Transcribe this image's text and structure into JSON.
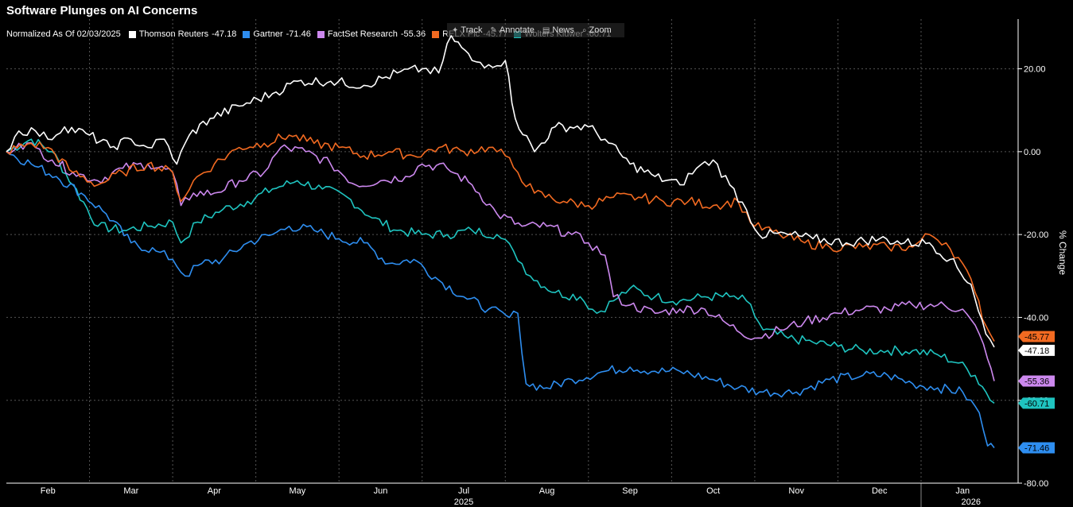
{
  "title": "Software Plunges on AI Concerns",
  "legend_prefix": "Normalized As Of 02/03/2025",
  "toolbar": {
    "items": [
      {
        "label": "Track",
        "icon": "track-icon"
      },
      {
        "label": "Annotate",
        "icon": "annotate-icon"
      },
      {
        "label": "News",
        "icon": "news-icon"
      },
      {
        "label": "Zoom",
        "icon": "zoom-icon"
      }
    ]
  },
  "chart_data": {
    "type": "line",
    "title": "Software Plunges on AI Concerns",
    "xlabel": "",
    "ylabel": "% Change",
    "ylim": [
      -80,
      32
    ],
    "yticks": [
      "20.00",
      "0.00",
      "-20.00",
      "-40.00",
      "-60.00",
      "-80.00"
    ],
    "ytick_values": [
      20,
      0,
      -20,
      -40,
      -60,
      -80
    ],
    "grid": true,
    "x_range": [
      0,
      12.25
    ],
    "x_month_labels": [
      "Feb",
      "Mar",
      "Apr",
      "May",
      "Jun",
      "Jul",
      "Aug",
      "Sep",
      "Oct",
      "Nov",
      "Dec",
      "Jan"
    ],
    "x_year_labels": [
      {
        "label": "2025",
        "x": 5.5
      },
      {
        "label": "2026",
        "x": 11.6
      }
    ],
    "series": [
      {
        "name": "Thomson Reuters",
        "legend_value": "-47.18",
        "end_label": "-47.18",
        "color": "#ffffff",
        "points": [
          [
            0,
            0
          ],
          [
            0.15,
            5
          ],
          [
            0.35,
            5
          ],
          [
            0.5,
            3
          ],
          [
            0.7,
            6
          ],
          [
            1.0,
            4
          ],
          [
            1.25,
            1
          ],
          [
            1.5,
            3
          ],
          [
            1.7,
            1
          ],
          [
            1.9,
            3
          ],
          [
            2.05,
            -3
          ],
          [
            2.2,
            4
          ],
          [
            2.45,
            8
          ],
          [
            2.8,
            11
          ],
          [
            3.2,
            14
          ],
          [
            3.5,
            17
          ],
          [
            3.9,
            17
          ],
          [
            4.3,
            16
          ],
          [
            4.7,
            19
          ],
          [
            5.0,
            20
          ],
          [
            5.2,
            19
          ],
          [
            5.35,
            28
          ],
          [
            5.6,
            22
          ],
          [
            5.8,
            21
          ],
          [
            6.0,
            22
          ],
          [
            6.12,
            8
          ],
          [
            6.35,
            0
          ],
          [
            6.6,
            6
          ],
          [
            7.0,
            6
          ],
          [
            7.2,
            3
          ],
          [
            7.5,
            -3
          ],
          [
            7.8,
            -6
          ],
          [
            8.1,
            -8
          ],
          [
            8.3,
            -4
          ],
          [
            8.5,
            -2
          ],
          [
            8.7,
            -8
          ],
          [
            8.9,
            -14
          ],
          [
            9.05,
            -20
          ],
          [
            9.4,
            -20
          ],
          [
            9.7,
            -21
          ],
          [
            10.1,
            -22
          ],
          [
            10.5,
            -21
          ],
          [
            10.8,
            -22
          ],
          [
            11.1,
            -22
          ],
          [
            11.35,
            -26
          ],
          [
            11.6,
            -32
          ],
          [
            11.78,
            -44
          ],
          [
            11.88,
            -47.18
          ]
        ]
      },
      {
        "name": "Gartner",
        "legend_value": "-71.46",
        "end_label": "-71.46",
        "color": "#2e8ef0",
        "points": [
          [
            0,
            0
          ],
          [
            0.3,
            -3
          ],
          [
            0.6,
            -6
          ],
          [
            0.9,
            -10
          ],
          [
            1.2,
            -15
          ],
          [
            1.5,
            -22
          ],
          [
            1.8,
            -24
          ],
          [
            2.0,
            -26
          ],
          [
            2.15,
            -30
          ],
          [
            2.35,
            -27
          ],
          [
            2.6,
            -26
          ],
          [
            2.9,
            -22
          ],
          [
            3.2,
            -20
          ],
          [
            3.4,
            -18
          ],
          [
            3.7,
            -19
          ],
          [
            4.0,
            -21
          ],
          [
            4.3,
            -22
          ],
          [
            4.6,
            -27
          ],
          [
            4.9,
            -26
          ],
          [
            5.2,
            -31
          ],
          [
            5.5,
            -35
          ],
          [
            5.8,
            -38
          ],
          [
            6.05,
            -40
          ],
          [
            6.15,
            -39
          ],
          [
            6.25,
            -56
          ],
          [
            6.5,
            -57
          ],
          [
            6.8,
            -55
          ],
          [
            7.2,
            -53
          ],
          [
            7.5,
            -52
          ],
          [
            7.8,
            -53
          ],
          [
            8.1,
            -53
          ],
          [
            8.5,
            -55
          ],
          [
            8.8,
            -57
          ],
          [
            9.1,
            -58
          ],
          [
            9.5,
            -58
          ],
          [
            9.9,
            -55
          ],
          [
            10.3,
            -54
          ],
          [
            10.6,
            -54
          ],
          [
            10.9,
            -56
          ],
          [
            11.2,
            -57
          ],
          [
            11.5,
            -58
          ],
          [
            11.7,
            -63
          ],
          [
            11.8,
            -71
          ],
          [
            11.88,
            -71.46
          ]
        ]
      },
      {
        "name": "FactSet Research",
        "legend_value": "-55.36",
        "end_label": "-55.36",
        "color": "#cc88ee",
        "points": [
          [
            0,
            0
          ],
          [
            0.15,
            2
          ],
          [
            0.35,
            1
          ],
          [
            0.55,
            -2
          ],
          [
            0.8,
            -5
          ],
          [
            1.1,
            -7
          ],
          [
            1.4,
            -4
          ],
          [
            1.7,
            -3
          ],
          [
            2.0,
            -5
          ],
          [
            2.1,
            -13
          ],
          [
            2.25,
            -10
          ],
          [
            2.5,
            -10
          ],
          [
            2.8,
            -7
          ],
          [
            3.1,
            -5
          ],
          [
            3.3,
            1
          ],
          [
            3.6,
            0
          ],
          [
            3.9,
            -3
          ],
          [
            4.2,
            -8
          ],
          [
            4.5,
            -7
          ],
          [
            4.8,
            -6
          ],
          [
            5.0,
            -3
          ],
          [
            5.3,
            -4
          ],
          [
            5.6,
            -8
          ],
          [
            5.9,
            -15
          ],
          [
            6.2,
            -18
          ],
          [
            6.5,
            -18
          ],
          [
            6.8,
            -20
          ],
          [
            7.0,
            -22
          ],
          [
            7.2,
            -25
          ],
          [
            7.3,
            -35
          ],
          [
            7.5,
            -37
          ],
          [
            7.8,
            -39
          ],
          [
            8.1,
            -38
          ],
          [
            8.4,
            -38
          ],
          [
            8.7,
            -42
          ],
          [
            9.0,
            -45
          ],
          [
            9.3,
            -43
          ],
          [
            9.6,
            -41
          ],
          [
            10.0,
            -39
          ],
          [
            10.3,
            -38
          ],
          [
            10.6,
            -38
          ],
          [
            10.9,
            -37
          ],
          [
            11.2,
            -37
          ],
          [
            11.5,
            -38
          ],
          [
            11.7,
            -44
          ],
          [
            11.8,
            -50
          ],
          [
            11.88,
            -55.36
          ]
        ]
      },
      {
        "name": "RELX Plc",
        "legend_value": "-45.77",
        "end_label": "-45.77",
        "color": "#f26a21",
        "points": [
          [
            0,
            0
          ],
          [
            0.3,
            2
          ],
          [
            0.5,
            1
          ],
          [
            0.8,
            -5
          ],
          [
            1.1,
            -8
          ],
          [
            1.4,
            -5
          ],
          [
            1.7,
            -3
          ],
          [
            2.0,
            -5
          ],
          [
            2.1,
            -12
          ],
          [
            2.25,
            -7
          ],
          [
            2.5,
            -3
          ],
          [
            2.8,
            1
          ],
          [
            3.1,
            2
          ],
          [
            3.4,
            4
          ],
          [
            3.7,
            2
          ],
          [
            4.0,
            1
          ],
          [
            4.3,
            -1
          ],
          [
            4.6,
            0
          ],
          [
            4.9,
            -1
          ],
          [
            5.2,
            1
          ],
          [
            5.5,
            0
          ],
          [
            5.8,
            1
          ],
          [
            6.0,
            -1
          ],
          [
            6.15,
            -5
          ],
          [
            6.35,
            -10
          ],
          [
            6.7,
            -12
          ],
          [
            7.0,
            -13
          ],
          [
            7.3,
            -11
          ],
          [
            7.6,
            -11
          ],
          [
            7.9,
            -12
          ],
          [
            8.2,
            -12
          ],
          [
            8.5,
            -13
          ],
          [
            8.8,
            -12
          ],
          [
            9.0,
            -18
          ],
          [
            9.3,
            -20
          ],
          [
            9.6,
            -22
          ],
          [
            9.9,
            -23
          ],
          [
            10.3,
            -23
          ],
          [
            10.6,
            -23
          ],
          [
            10.9,
            -23
          ],
          [
            11.1,
            -20
          ],
          [
            11.3,
            -22
          ],
          [
            11.5,
            -27
          ],
          [
            11.65,
            -34
          ],
          [
            11.78,
            -42
          ],
          [
            11.88,
            -45.77
          ]
        ]
      },
      {
        "name": "Wolters Kluwer",
        "legend_value": "-60.71",
        "end_label": "-60.71",
        "color": "#1fc4c0",
        "points": [
          [
            0,
            0
          ],
          [
            0.3,
            3
          ],
          [
            0.55,
            0
          ],
          [
            0.8,
            -8
          ],
          [
            1.1,
            -18
          ],
          [
            1.4,
            -19
          ],
          [
            1.7,
            -18
          ],
          [
            2.0,
            -17
          ],
          [
            2.1,
            -22
          ],
          [
            2.3,
            -17
          ],
          [
            2.6,
            -14
          ],
          [
            2.9,
            -12
          ],
          [
            3.2,
            -9
          ],
          [
            3.5,
            -7
          ],
          [
            3.8,
            -9
          ],
          [
            4.1,
            -11
          ],
          [
            4.4,
            -16
          ],
          [
            4.7,
            -19
          ],
          [
            5.0,
            -20
          ],
          [
            5.3,
            -20
          ],
          [
            5.6,
            -19
          ],
          [
            5.9,
            -20
          ],
          [
            6.1,
            -24
          ],
          [
            6.3,
            -30
          ],
          [
            6.6,
            -34
          ],
          [
            6.9,
            -35
          ],
          [
            7.1,
            -39
          ],
          [
            7.3,
            -36
          ],
          [
            7.5,
            -33
          ],
          [
            7.8,
            -35
          ],
          [
            8.1,
            -36
          ],
          [
            8.4,
            -35
          ],
          [
            8.7,
            -35
          ],
          [
            8.9,
            -36
          ],
          [
            9.1,
            -43
          ],
          [
            9.4,
            -45
          ],
          [
            9.7,
            -46
          ],
          [
            10.0,
            -47
          ],
          [
            10.3,
            -48
          ],
          [
            10.6,
            -48
          ],
          [
            10.9,
            -48
          ],
          [
            11.2,
            -49
          ],
          [
            11.45,
            -51
          ],
          [
            11.65,
            -54
          ],
          [
            11.78,
            -58
          ],
          [
            11.88,
            -60.71
          ]
        ]
      }
    ]
  }
}
